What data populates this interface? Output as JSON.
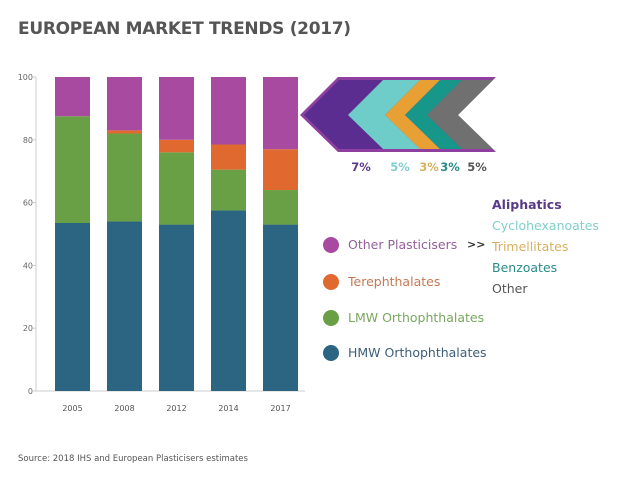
{
  "chart_data": {
    "type": "bar",
    "stacked": true,
    "title": "EUROPEAN MARKET TRENDS (2017)",
    "categories": [
      "2005",
      "2008",
      "2012",
      "2014",
      "2017"
    ],
    "ylim": [
      0,
      100
    ],
    "yticks": [
      "0",
      "20",
      "40",
      "60",
      "80",
      "100"
    ],
    "grid": false,
    "legend_position": "right",
    "series": [
      {
        "name": "HMW Orthophthalates",
        "color": "#2b6582",
        "text_color": "#3d5f78",
        "values": [
          53.5,
          54,
          53,
          57.5,
          53
        ]
      },
      {
        "name": "LMW Orthophthalates",
        "color": "#6aa045",
        "text_color": "#7aa860",
        "values": [
          34,
          28,
          23,
          13,
          11
        ]
      },
      {
        "name": "Terephthalates",
        "color": "#e0692f",
        "text_color": "#c47a55",
        "values": [
          0,
          1,
          4,
          8,
          13
        ]
      },
      {
        "name": "Other Plasticisers",
        "color": "#a84ba0",
        "text_color": "#94609a",
        "values": [
          12.5,
          17,
          20,
          21.5,
          23
        ]
      }
    ],
    "breakdown_separator": ">>",
    "breakdown": [
      {
        "name": "Aliphatics",
        "percent": "7%",
        "color": "#5b2d91",
        "text_color": "#5a3a86"
      },
      {
        "name": "Cyclohexanoates",
        "percent": "5%",
        "color": "#6ecdc9",
        "text_color": "#80cfcc"
      },
      {
        "name": "Trimellitates",
        "percent": "3%",
        "color": "#e8a035",
        "text_color": "#d8b060"
      },
      {
        "name": "Benzoates",
        "percent": "3%",
        "color": "#17968a",
        "text_color": "#2a8a88"
      },
      {
        "name": "Other",
        "percent": "5%",
        "color": "#707070",
        "text_color": "#555555"
      }
    ],
    "breakdown_border_color": "#8e3fa0",
    "source": "Source: 2018 IHS and European Plasticisers estimates"
  }
}
